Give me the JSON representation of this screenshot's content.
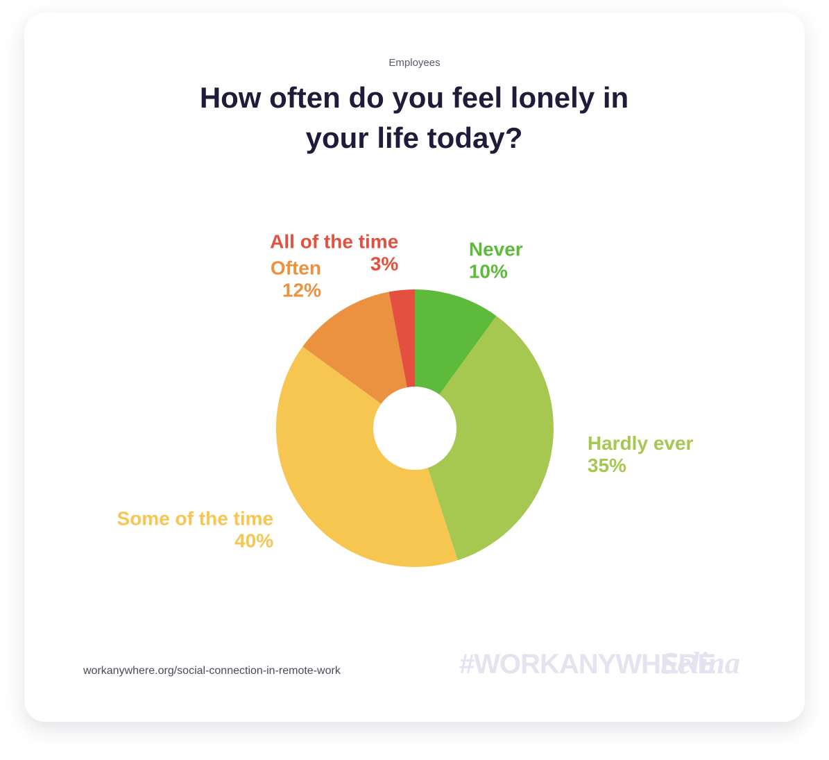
{
  "chart_data": {
    "type": "pie",
    "subtitle": "Employees",
    "title": "How often do you feel lonely in your life today?",
    "categories": [
      "Never",
      "Hardly ever",
      "Some of the time",
      "Often",
      "All of the time"
    ],
    "values": [
      10,
      35,
      40,
      12,
      3
    ],
    "value_labels": [
      "10%",
      "35%",
      "40%",
      "12%",
      "3%"
    ],
    "colors": [
      "#5dba3b",
      "#a6c850",
      "#f6c651",
      "#eb9240",
      "#e4503f"
    ],
    "donut": true
  },
  "footer": {
    "source": "workanywhere.org/social-connection-in-remote-work",
    "hashtag": "#WORKANYWHERE",
    "brand": "Selina"
  }
}
